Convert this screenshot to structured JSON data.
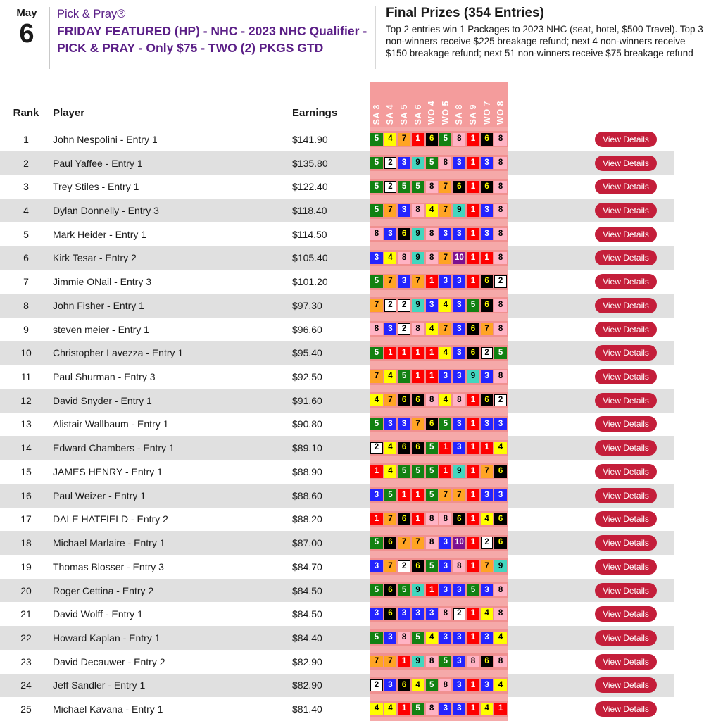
{
  "header": {
    "date_month": "May",
    "date_day": "6",
    "subtitle": "Pick & Pray®",
    "title": "FRIDAY FEATURED (HP) - NHC - 2023 NHC Qualifier - PICK & PRAY - Only $75 - TWO (2) PKGS GTD"
  },
  "prizes": {
    "heading": "Final Prizes (354 Entries)",
    "description": "Top 2 entries win 1 Packages to 2023 NHC (seat, hotel, $500 Travel). Top 3 non-winners receive $225 breakage refund; next 4 non-winners receive $150 breakage refund; next 51 non-winners receive $75 breakage refund"
  },
  "table": {
    "columns": {
      "rank": "Rank",
      "player": "Player",
      "earnings": "Earnings"
    },
    "race_headers": [
      "SA 3",
      "SA 4",
      "SA 5",
      "SA 6",
      "WO 4",
      "WO 5",
      "SA 8",
      "SA 9",
      "WO 7",
      "WO 8"
    ],
    "view_details_label": "View Details",
    "rows": [
      {
        "rank": "1",
        "player": "John Nespolini - Entry 1",
        "earnings": "$141.90",
        "picks": [
          5,
          4,
          7,
          1,
          6,
          5,
          8,
          1,
          6,
          8
        ]
      },
      {
        "rank": "2",
        "player": "Paul Yaffee - Entry 1",
        "earnings": "$135.80",
        "picks": [
          5,
          2,
          3,
          9,
          5,
          8,
          3,
          1,
          3,
          8
        ]
      },
      {
        "rank": "3",
        "player": "Trey Stiles - Entry 1",
        "earnings": "$122.40",
        "picks": [
          5,
          2,
          5,
          5,
          8,
          7,
          6,
          1,
          6,
          8
        ]
      },
      {
        "rank": "4",
        "player": "Dylan Donnelly - Entry 3",
        "earnings": "$118.40",
        "picks": [
          5,
          7,
          3,
          8,
          4,
          7,
          9,
          1,
          3,
          8
        ]
      },
      {
        "rank": "5",
        "player": "Mark Heider - Entry 1",
        "earnings": "$114.50",
        "picks": [
          8,
          3,
          6,
          9,
          8,
          3,
          3,
          1,
          3,
          8
        ]
      },
      {
        "rank": "6",
        "player": "Kirk Tesar - Entry 2",
        "earnings": "$105.40",
        "picks": [
          3,
          4,
          8,
          9,
          8,
          7,
          10,
          1,
          1,
          8
        ]
      },
      {
        "rank": "7",
        "player": "Jimmie ONail - Entry 3",
        "earnings": "$101.20",
        "picks": [
          5,
          7,
          3,
          7,
          1,
          3,
          3,
          1,
          6,
          2
        ]
      },
      {
        "rank": "8",
        "player": "John Fisher - Entry 1",
        "earnings": "$97.30",
        "picks": [
          7,
          2,
          2,
          9,
          3,
          4,
          3,
          5,
          6,
          8
        ]
      },
      {
        "rank": "9",
        "player": "steven meier - Entry 1",
        "earnings": "$96.60",
        "picks": [
          8,
          3,
          2,
          8,
          4,
          7,
          3,
          6,
          7,
          8
        ]
      },
      {
        "rank": "10",
        "player": "Christopher Lavezza - Entry 1",
        "earnings": "$95.40",
        "picks": [
          5,
          1,
          1,
          1,
          1,
          4,
          3,
          6,
          2,
          5
        ]
      },
      {
        "rank": "11",
        "player": "Paul Shurman - Entry 3",
        "earnings": "$92.50",
        "picks": [
          7,
          4,
          5,
          1,
          1,
          3,
          3,
          9,
          3,
          8
        ]
      },
      {
        "rank": "12",
        "player": "David Snyder - Entry 1",
        "earnings": "$91.60",
        "picks": [
          4,
          7,
          6,
          6,
          8,
          4,
          8,
          1,
          6,
          2
        ]
      },
      {
        "rank": "13",
        "player": "Alistair Wallbaum - Entry 1",
        "earnings": "$90.80",
        "picks": [
          5,
          3,
          3,
          7,
          6,
          5,
          3,
          1,
          3,
          3
        ]
      },
      {
        "rank": "14",
        "player": "Edward Chambers - Entry 1",
        "earnings": "$89.10",
        "picks": [
          2,
          4,
          6,
          6,
          5,
          1,
          3,
          1,
          1,
          4
        ]
      },
      {
        "rank": "15",
        "player": "JAMES HENRY - Entry 1",
        "earnings": "$88.90",
        "picks": [
          1,
          4,
          5,
          5,
          5,
          1,
          9,
          1,
          7,
          6
        ]
      },
      {
        "rank": "16",
        "player": "Paul Weizer - Entry 1",
        "earnings": "$88.60",
        "picks": [
          3,
          5,
          1,
          1,
          5,
          7,
          7,
          1,
          3,
          3
        ]
      },
      {
        "rank": "17",
        "player": "DALE HATFIELD - Entry 2",
        "earnings": "$88.20",
        "picks": [
          1,
          7,
          6,
          1,
          8,
          8,
          6,
          1,
          4,
          6
        ]
      },
      {
        "rank": "18",
        "player": "Michael Marlaire - Entry 1",
        "earnings": "$87.00",
        "picks": [
          5,
          6,
          7,
          7,
          8,
          3,
          10,
          1,
          2,
          6
        ]
      },
      {
        "rank": "19",
        "player": "Thomas Blosser - Entry 3",
        "earnings": "$84.70",
        "picks": [
          3,
          7,
          2,
          6,
          5,
          3,
          8,
          1,
          7,
          9
        ]
      },
      {
        "rank": "20",
        "player": "Roger Cettina - Entry 2",
        "earnings": "$84.50",
        "picks": [
          5,
          6,
          5,
          9,
          1,
          3,
          3,
          5,
          3,
          8
        ]
      },
      {
        "rank": "21",
        "player": "David Wolff - Entry 1",
        "earnings": "$84.50",
        "picks": [
          3,
          6,
          3,
          3,
          3,
          8,
          2,
          1,
          4,
          8
        ]
      },
      {
        "rank": "22",
        "player": "Howard Kaplan - Entry 1",
        "earnings": "$84.40",
        "picks": [
          5,
          3,
          8,
          5,
          4,
          3,
          3,
          1,
          3,
          4
        ]
      },
      {
        "rank": "23",
        "player": "David Decauwer - Entry 2",
        "earnings": "$82.90",
        "picks": [
          7,
          7,
          1,
          9,
          8,
          5,
          3,
          8,
          6,
          8
        ]
      },
      {
        "rank": "24",
        "player": "Jeff Sandler - Entry 1",
        "earnings": "$82.90",
        "picks": [
          2,
          3,
          6,
          4,
          5,
          8,
          3,
          1,
          3,
          4
        ]
      },
      {
        "rank": "25",
        "player": "Michael Kavana - Entry 1",
        "earnings": "$81.40",
        "picks": [
          4,
          4,
          1,
          5,
          8,
          3,
          3,
          1,
          4,
          1
        ]
      }
    ]
  },
  "colors": {
    "accent_purple": "#5b1f87",
    "button_red": "#c41e3a",
    "row_alt_gray": "#e0e0e0",
    "strip_pink": "#f5a9a9",
    "strip_band_pink": "#f09090",
    "strip_header_pink": "#f49c9c",
    "saddle_cloth": {
      "1": {
        "bg": "#fe0000",
        "fg": "#ffffff"
      },
      "2": {
        "bg": "#ffffff",
        "fg": "#000000",
        "border": "#000000"
      },
      "3": {
        "bg": "#2424fe",
        "fg": "#ffffff"
      },
      "4": {
        "bg": "#fffe00",
        "fg": "#000000"
      },
      "5": {
        "bg": "#128112",
        "fg": "#ffffff"
      },
      "6": {
        "bg": "#000000",
        "fg": "#fffe00"
      },
      "7": {
        "bg": "#ffa424",
        "fg": "#000000"
      },
      "8": {
        "bg": "#ffb3c4",
        "fg": "#000000"
      },
      "9": {
        "bg": "#43d6be",
        "fg": "#000000"
      },
      "10": {
        "bg": "#7d1190",
        "fg": "#ffffff"
      }
    }
  }
}
